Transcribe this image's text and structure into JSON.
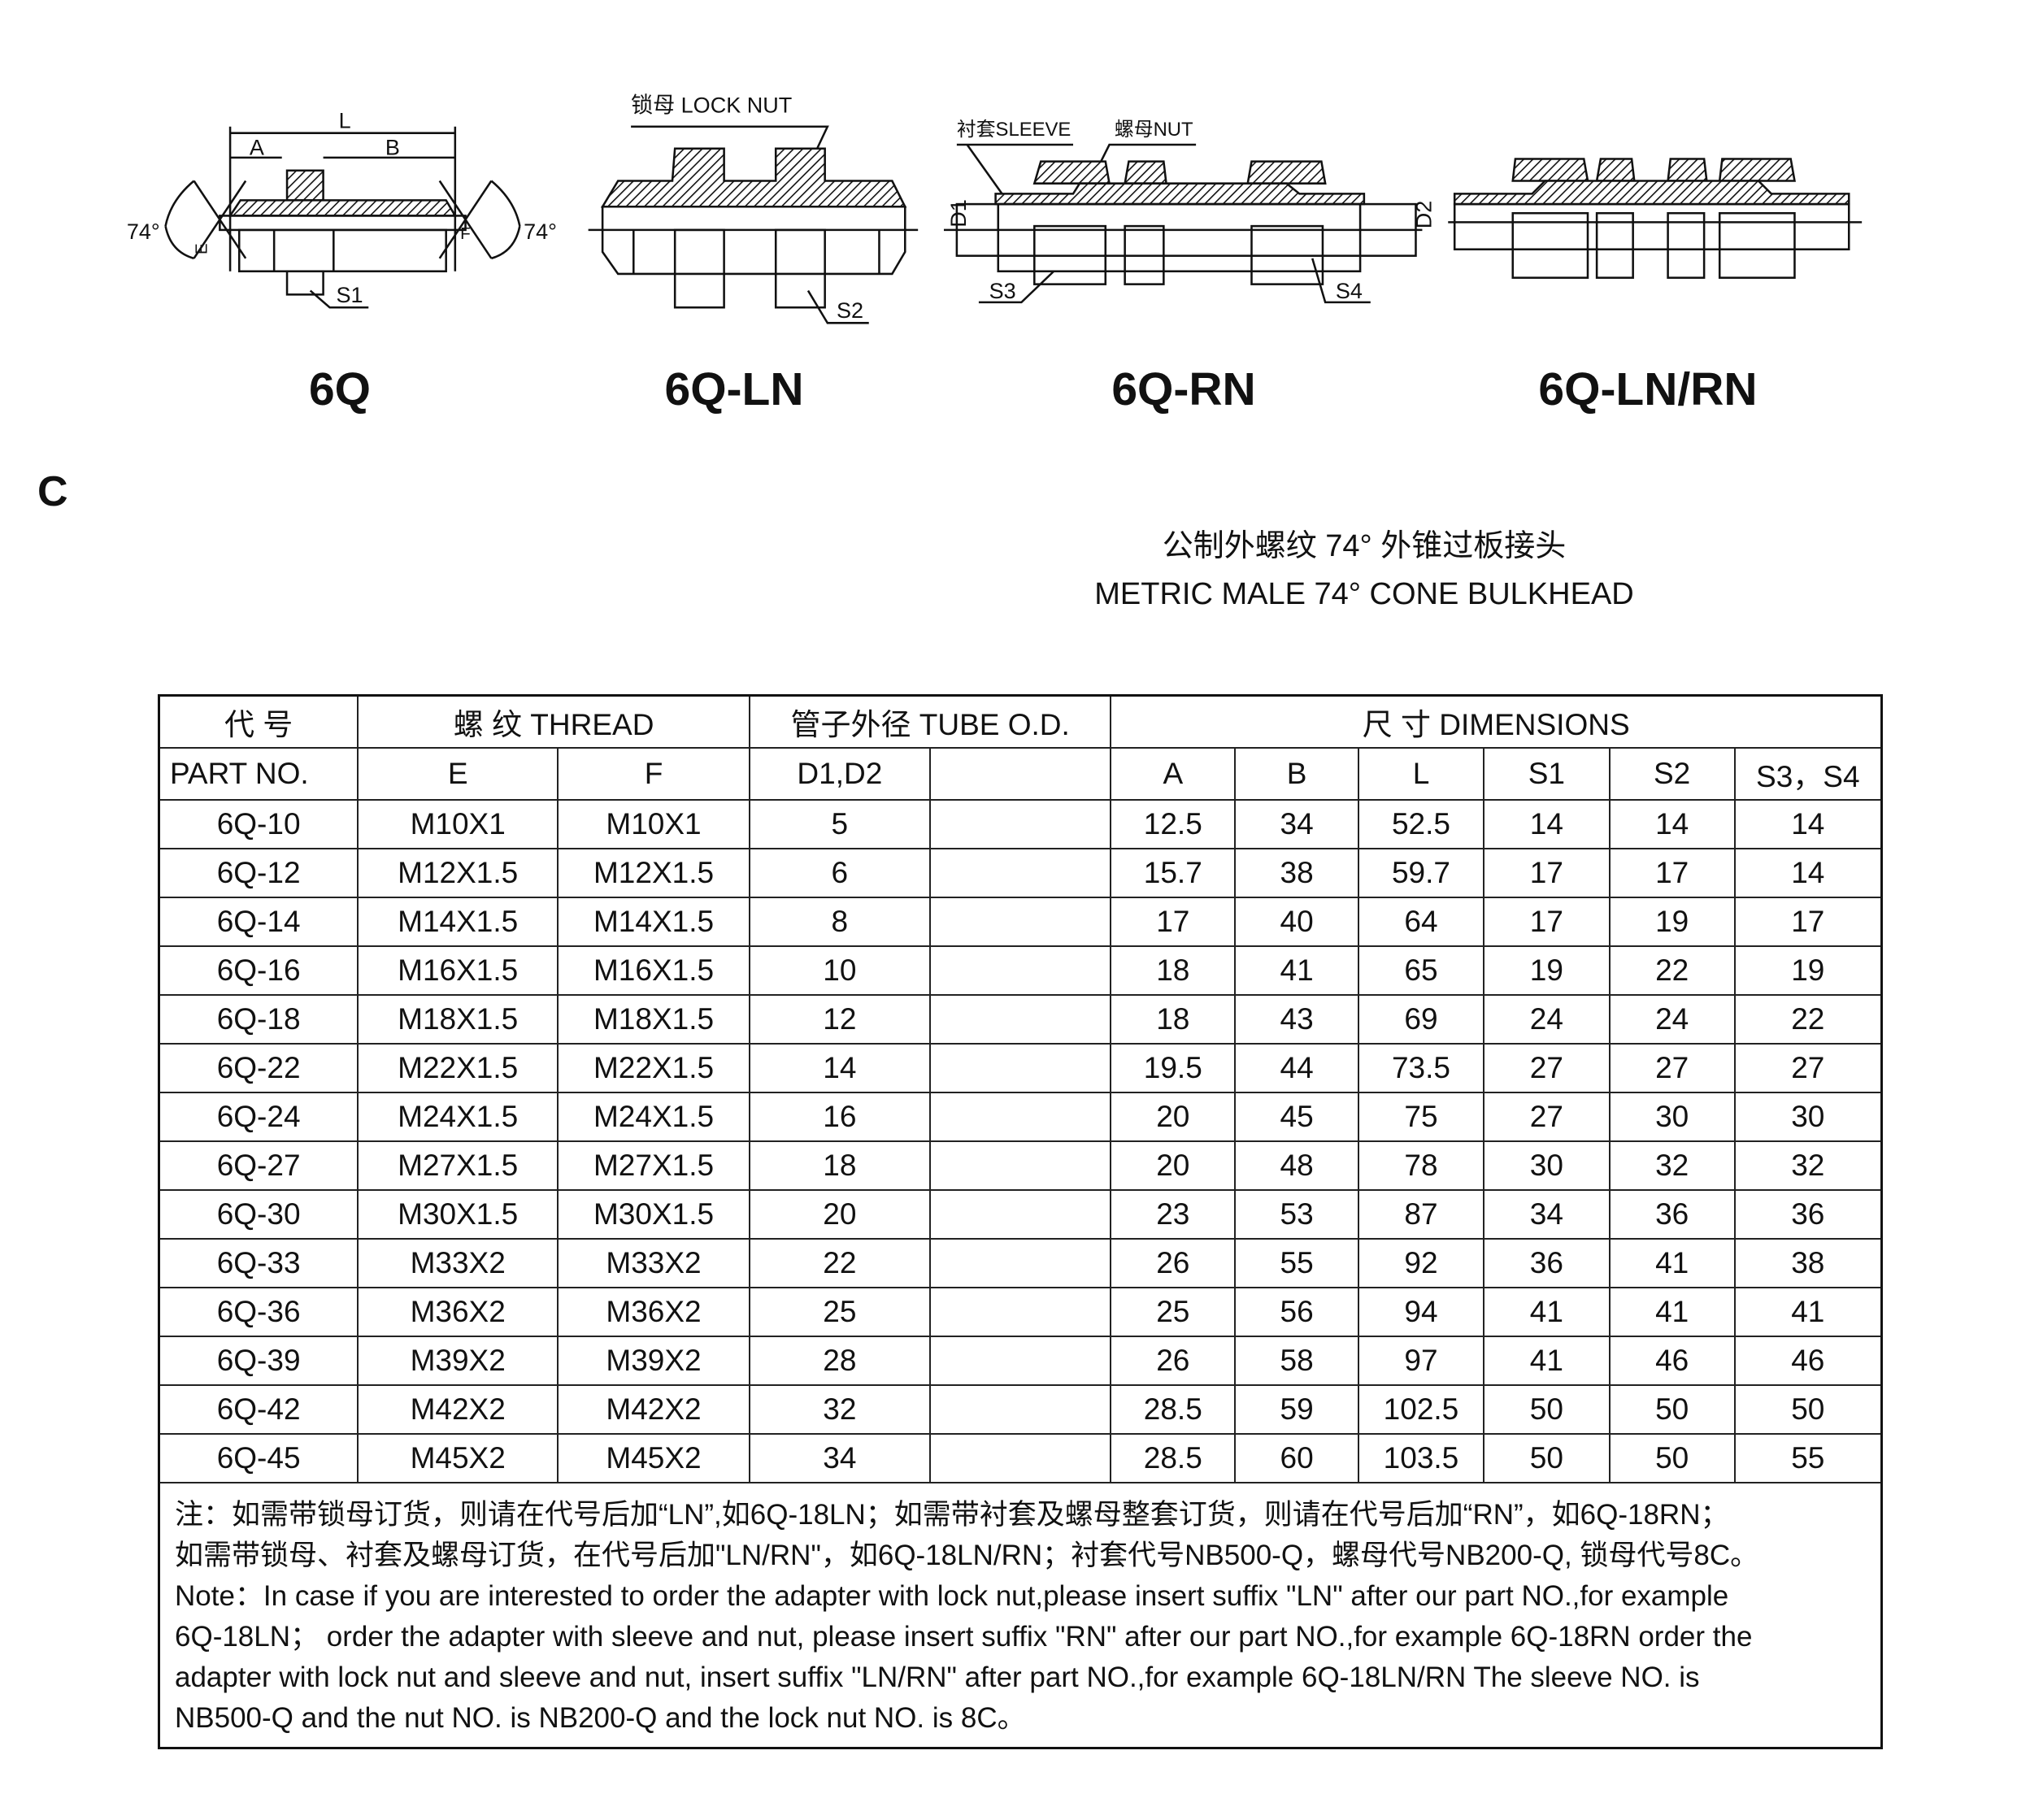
{
  "diagram_labels": {
    "lock_nut": "锁母 LOCK NUT",
    "sleeve": "衬套SLEEVE",
    "nut": "螺母NUT",
    "L": "L",
    "A": "A",
    "B": "B",
    "E": "E",
    "F": "F",
    "angle_left": "74°",
    "angle_right": "74°",
    "S1": "S1",
    "S2": "S2",
    "S3": "S3",
    "S4": "S4",
    "D1": "D1",
    "D2": "D2"
  },
  "models": [
    "6Q",
    "6Q-LN",
    "6Q-RN",
    "6Q-LN/RN"
  ],
  "section": "C",
  "title_cn": "公制外螺纹  74° 外锥过板接头",
  "title_en": "METRIC MALE 74° CONE BULKHEAD",
  "table": {
    "header1": {
      "part_cn": "代  号",
      "thread": "螺  纹   THREAD",
      "tube": "管子外径 TUBE O.D.",
      "dims": "尺  寸    DIMENSIONS"
    },
    "header2": {
      "part_en": "PART  NO.",
      "E": "E",
      "F": "F",
      "D": "D1,D2",
      "blank": "",
      "A": "A",
      "B": "B",
      "L": "L",
      "S1": "S1",
      "S2": "S2",
      "S34": "S3，S4"
    },
    "rows": [
      [
        "6Q-10",
        "M10X1",
        "M10X1",
        "5",
        "",
        "12.5",
        "34",
        "52.5",
        "14",
        "14",
        "14"
      ],
      [
        "6Q-12",
        "M12X1.5",
        "M12X1.5",
        "6",
        "",
        "15.7",
        "38",
        "59.7",
        "17",
        "17",
        "14"
      ],
      [
        "6Q-14",
        "M14X1.5",
        "M14X1.5",
        "8",
        "",
        "17",
        "40",
        "64",
        "17",
        "19",
        "17"
      ],
      [
        "6Q-16",
        "M16X1.5",
        "M16X1.5",
        "10",
        "",
        "18",
        "41",
        "65",
        "19",
        "22",
        "19"
      ],
      [
        "6Q-18",
        "M18X1.5",
        "M18X1.5",
        "12",
        "",
        "18",
        "43",
        "69",
        "24",
        "24",
        "22"
      ],
      [
        "6Q-22",
        "M22X1.5",
        "M22X1.5",
        "14",
        "",
        "19.5",
        "44",
        "73.5",
        "27",
        "27",
        "27"
      ],
      [
        "6Q-24",
        "M24X1.5",
        "M24X1.5",
        "16",
        "",
        "20",
        "45",
        "75",
        "27",
        "30",
        "30"
      ],
      [
        "6Q-27",
        "M27X1.5",
        "M27X1.5",
        "18",
        "",
        "20",
        "48",
        "78",
        "30",
        "32",
        "32"
      ],
      [
        "6Q-30",
        "M30X1.5",
        "M30X1.5",
        "20",
        "",
        "23",
        "53",
        "87",
        "34",
        "36",
        "36"
      ],
      [
        "6Q-33",
        "M33X2",
        "M33X2",
        "22",
        "",
        "26",
        "55",
        "92",
        "36",
        "41",
        "38"
      ],
      [
        "6Q-36",
        "M36X2",
        "M36X2",
        "25",
        "",
        "25",
        "56",
        "94",
        "41",
        "41",
        "41"
      ],
      [
        "6Q-39",
        "M39X2",
        "M39X2",
        "28",
        "",
        "26",
        "58",
        "97",
        "41",
        "46",
        "46"
      ],
      [
        "6Q-42",
        "M42X2",
        "M42X2",
        "32",
        "",
        "28.5",
        "59",
        "102.5",
        "50",
        "50",
        "50"
      ],
      [
        "6Q-45",
        "M45X2",
        "M45X2",
        "34",
        "",
        "28.5",
        "60",
        "103.5",
        "50",
        "50",
        "55"
      ]
    ],
    "notes": [
      "注：如需带锁母订货，则请在代号后加“LN”,如6Q-18LN；如需带衬套及螺母整套订货，则请在代号后加“RN”，如6Q-18RN；",
      "如需带锁母、衬套及螺母订货，在代号后加\"LN/RN\"，如6Q-18LN/RN；衬套代号NB500-Q，螺母代号NB200-Q, 锁母代号8C。",
      "Note：In case if you are interested to order the adapter with lock nut,please insert suffix \"LN\" after our part NO.,for example",
      "6Q-18LN；  order the adapter with  sleeve and nut, please insert suffix \"RN\" after our part NO.,for example 6Q-18RN order the",
      "adapter with lock nut and sleeve and nut, insert suffix  \"LN/RN\" after part NO.,for  example 6Q-18LN/RN The sleeve NO. is",
      "NB500-Q and the nut NO. is NB200-Q and the lock nut NO. is 8C。"
    ]
  }
}
